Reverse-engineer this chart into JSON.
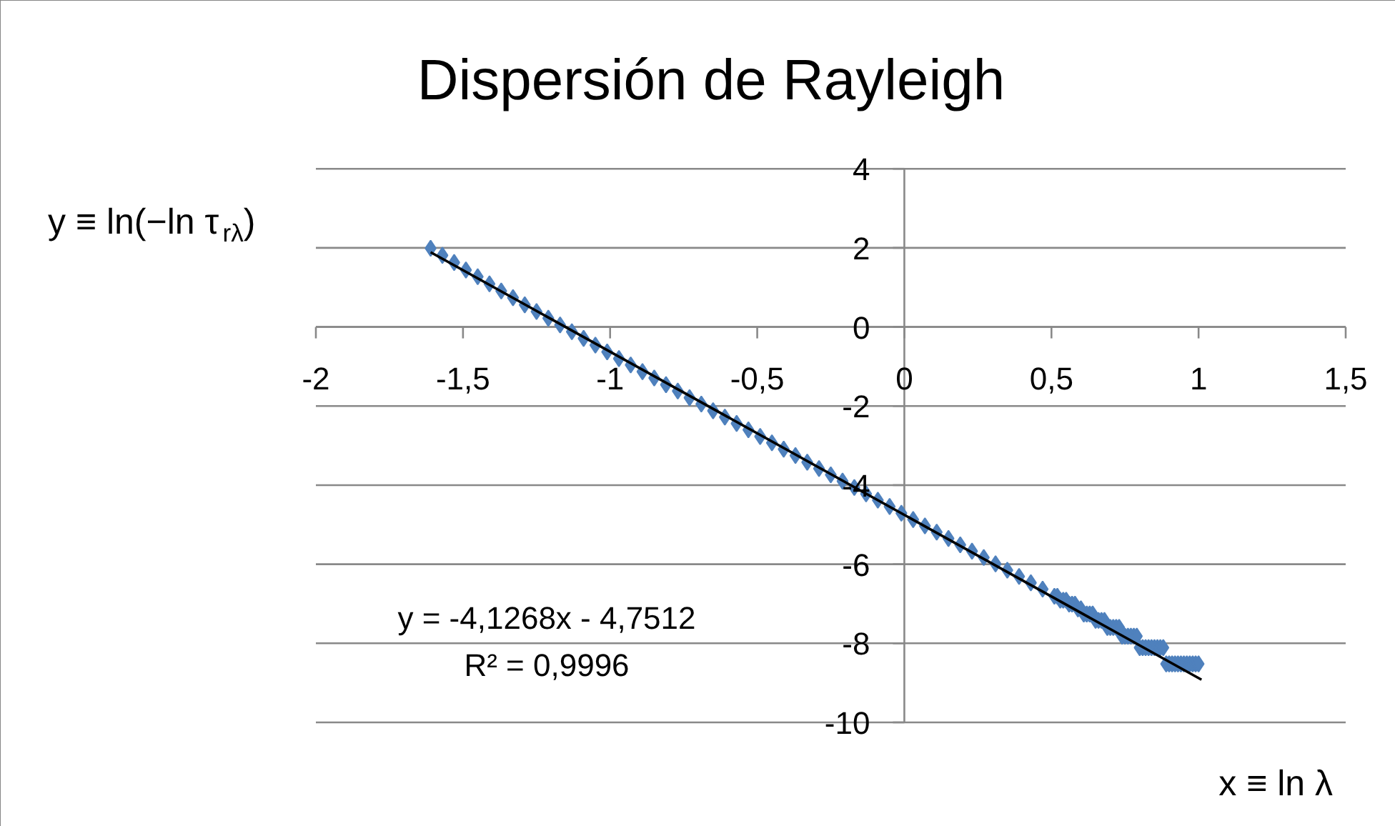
{
  "chart_data": {
    "type": "scatter",
    "title": "Dispersión de Rayleigh",
    "xlabel": "x ≡ ln λ",
    "ylabel": "y ≡ ln(−ln τ$_{rλ}$)",
    "xlim": [
      -2,
      1.5
    ],
    "ylim": [
      -10,
      4
    ],
    "xticks": [
      -2,
      {
        "value": -1.5,
        "label": "-1,5"
      },
      -1,
      {
        "value": -0.5,
        "label": "-0,5"
      },
      0,
      {
        "value": 0.5,
        "label": "0,5"
      },
      1,
      {
        "value": 1.5,
        "label": "1,5"
      }
    ],
    "yticks": [
      -10,
      -8,
      -6,
      -4,
      -2,
      0,
      2,
      4
    ],
    "grid": "y",
    "marker": "diamond",
    "series": [
      {
        "color": "#4f81bd",
        "x": [
          -1.61,
          -1.57,
          -1.53,
          -1.49,
          -1.45,
          -1.41,
          -1.37,
          -1.33,
          -1.29,
          -1.25,
          -1.21,
          -1.17,
          -1.13,
          -1.09,
          -1.05,
          -1.01,
          -0.97,
          -0.93,
          -0.89,
          -0.85,
          -0.81,
          -0.77,
          -0.73,
          -0.69,
          -0.65,
          -0.61,
          -0.57,
          -0.53,
          -0.49,
          -0.45,
          -0.41,
          -0.37,
          -0.33,
          -0.29,
          -0.25,
          -0.21,
          -0.17,
          -0.13,
          -0.09,
          -0.05,
          -0.01,
          0.03,
          0.07,
          0.11,
          0.15,
          0.19,
          0.23,
          0.27,
          0.31,
          0.35,
          0.39,
          0.43,
          0.47,
          0.51,
          0.52,
          0.53,
          0.54,
          0.55,
          0.56,
          0.57,
          0.58,
          0.59,
          0.6,
          0.61,
          0.62,
          0.63,
          0.64,
          0.65,
          0.66,
          0.67,
          0.68,
          0.69,
          0.7,
          0.71,
          0.72,
          0.73,
          0.74,
          0.75,
          0.76,
          0.77,
          0.78,
          0.79,
          0.8,
          0.81,
          0.82,
          0.83,
          0.84,
          0.85,
          0.86,
          0.87,
          0.88,
          0.89,
          0.9,
          0.91,
          0.92,
          0.93,
          0.94,
          0.95,
          0.96,
          0.97,
          0.98,
          0.99,
          1.0
        ],
        "values": [
          1.99,
          1.81,
          1.63,
          1.44,
          1.27,
          1.09,
          0.91,
          0.74,
          0.56,
          0.39,
          0.22,
          0.05,
          -0.12,
          -0.29,
          -0.46,
          -0.63,
          -0.8,
          -0.96,
          -1.13,
          -1.29,
          -1.46,
          -1.62,
          -1.79,
          -1.95,
          -2.12,
          -2.28,
          -2.44,
          -2.6,
          -2.77,
          -2.93,
          -3.09,
          -3.25,
          -3.42,
          -3.58,
          -3.74,
          -3.9,
          -4.06,
          -4.22,
          -4.38,
          -4.54,
          -4.71,
          -4.87,
          -5.03,
          -5.19,
          -5.35,
          -5.51,
          -5.67,
          -5.83,
          -5.99,
          -6.15,
          -6.31,
          -6.47,
          -6.63,
          -6.81,
          -6.81,
          -6.91,
          -6.91,
          -6.91,
          -7.01,
          -7.01,
          -7.01,
          -7.13,
          -7.13,
          -7.26,
          -7.26,
          -7.26,
          -7.26,
          -7.42,
          -7.42,
          -7.42,
          -7.42,
          -7.6,
          -7.6,
          -7.6,
          -7.6,
          -7.6,
          -7.82,
          -7.82,
          -7.82,
          -7.82,
          -7.82,
          -7.82,
          -8.11,
          -8.11,
          -8.11,
          -8.11,
          -8.11,
          -8.11,
          -8.11,
          -8.11,
          -8.11,
          -8.52,
          -8.52,
          -8.52,
          -8.52,
          -8.52,
          -8.52,
          -8.52,
          -8.52,
          -8.52,
          -8.52,
          -8.52,
          -8.52
        ]
      },
      {
        "type": "line",
        "color": "#000000",
        "marker": "none",
        "x": [
          -1.61,
          1.01
        ],
        "values": [
          1.89,
          -8.92
        ]
      }
    ],
    "annotations": [
      "y = -4,1268x - 4,7512",
      "R² = 0,9996"
    ]
  }
}
